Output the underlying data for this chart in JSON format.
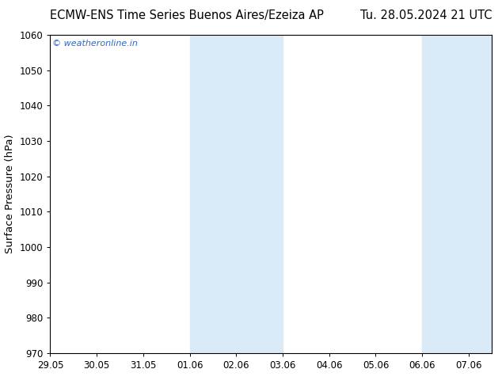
{
  "title_left": "ECMW-ENS Time Series Buenos Aires/Ezeiza AP",
  "title_right": "Tu. 28.05.2024 21 UTC",
  "ylabel": "Surface Pressure (hPa)",
  "ylim": [
    970,
    1060
  ],
  "yticks": [
    970,
    980,
    990,
    1000,
    1010,
    1020,
    1030,
    1040,
    1050,
    1060
  ],
  "xtick_labels": [
    "29.05",
    "30.05",
    "31.05",
    "01.06",
    "02.06",
    "03.06",
    "04.06",
    "05.06",
    "06.06",
    "07.06"
  ],
  "xtick_positions": [
    0,
    1,
    2,
    3,
    4,
    5,
    6,
    7,
    8,
    9
  ],
  "xlim": [
    -0.0,
    9.5
  ],
  "shaded_bands": [
    {
      "x_start": 3,
      "x_end": 5,
      "color": "#daeaf7"
    },
    {
      "x_start": 8,
      "x_end": 9.5,
      "color": "#daeaf7"
    }
  ],
  "watermark_text": "© weatheronline.in",
  "watermark_color": "#3366bb",
  "background_color": "#ffffff",
  "plot_bg_color": "#ffffff",
  "title_fontsize": 10.5,
  "ylabel_fontsize": 9.5,
  "tick_fontsize": 8.5,
  "border_color": "#000000"
}
